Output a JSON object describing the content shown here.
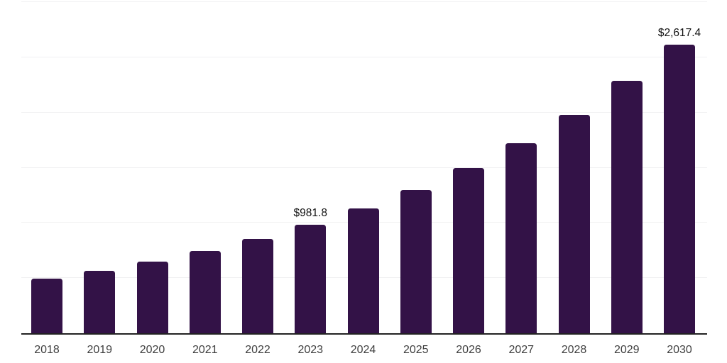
{
  "chart_data": {
    "type": "bar",
    "title": "",
    "xlabel": "",
    "ylabel": "",
    "categories": [
      "2018",
      "2019",
      "2020",
      "2021",
      "2022",
      "2023",
      "2024",
      "2025",
      "2026",
      "2027",
      "2028",
      "2029",
      "2030"
    ],
    "values": [
      495,
      566,
      650,
      745,
      852,
      981.8,
      1129,
      1300,
      1495,
      1720,
      1980,
      2290,
      2617.4
    ],
    "point_labels": {
      "2023": "$981.8",
      "2030": "$2,617.4"
    },
    "ylim": [
      0,
      3000
    ],
    "grid_interval": 500,
    "grid": true,
    "legend": false
  },
  "colors": {
    "background": "#ffffff",
    "bar": "#331247",
    "gridline": "#f1f1f2",
    "axis_line": "#222222",
    "x_label": "#3f3f3f",
    "value_label": "#111111"
  }
}
